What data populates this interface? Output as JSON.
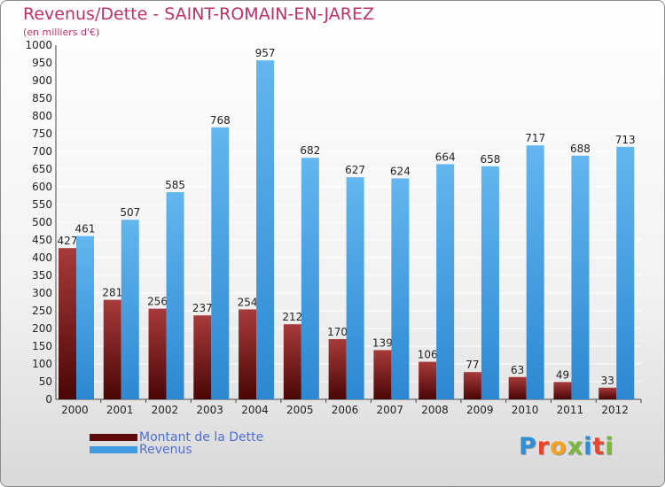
{
  "header": {
    "title": "Revenus/Dette - SAINT-ROMAIN-EN-JAREZ",
    "subtitle": "(en milliers d'€)"
  },
  "chart_data": {
    "type": "bar",
    "title": "Revenus/Dette - SAINT-ROMAIN-EN-JAREZ",
    "ylabel": "(en milliers d'€)",
    "xlabel": "",
    "categories": [
      "2000",
      "2001",
      "2002",
      "2003",
      "2004",
      "2005",
      "2006",
      "2007",
      "2008",
      "2009",
      "2010",
      "2011",
      "2012"
    ],
    "series": [
      {
        "name": "Montant de la Dette",
        "color": "#7a1414",
        "values": [
          427,
          281,
          256,
          237,
          254,
          212,
          170,
          139,
          106,
          77,
          63,
          49,
          33
        ]
      },
      {
        "name": "Revenus",
        "color": "#3f9be0",
        "values": [
          461,
          507,
          585,
          768,
          957,
          682,
          627,
          624,
          664,
          658,
          717,
          688,
          713
        ]
      }
    ],
    "ylim": [
      0,
      1000
    ],
    "yticks": [
      0,
      50,
      100,
      150,
      200,
      250,
      300,
      350,
      400,
      450,
      500,
      550,
      600,
      650,
      700,
      750,
      800,
      850,
      900,
      950,
      1000
    ],
    "grid": true,
    "legend_position": "bottom-left"
  },
  "legend": {
    "items": [
      {
        "label": "Montant de la Dette",
        "color": "#5c0a0a"
      },
      {
        "label": "Revenus",
        "color": "#3f9be0"
      }
    ]
  },
  "brand": {
    "letters": [
      {
        "char": "P",
        "color": "#2e8fd6"
      },
      {
        "char": "r",
        "color": "#e7462d"
      },
      {
        "char": "o",
        "color": "#f2a21e"
      },
      {
        "char": "x",
        "color": "#7ab83a"
      },
      {
        "char": "i",
        "color": "#2e8fd6"
      },
      {
        "char": "t",
        "color": "#e7462d"
      },
      {
        "char": "i",
        "color": "#7ab83a"
      }
    ]
  }
}
